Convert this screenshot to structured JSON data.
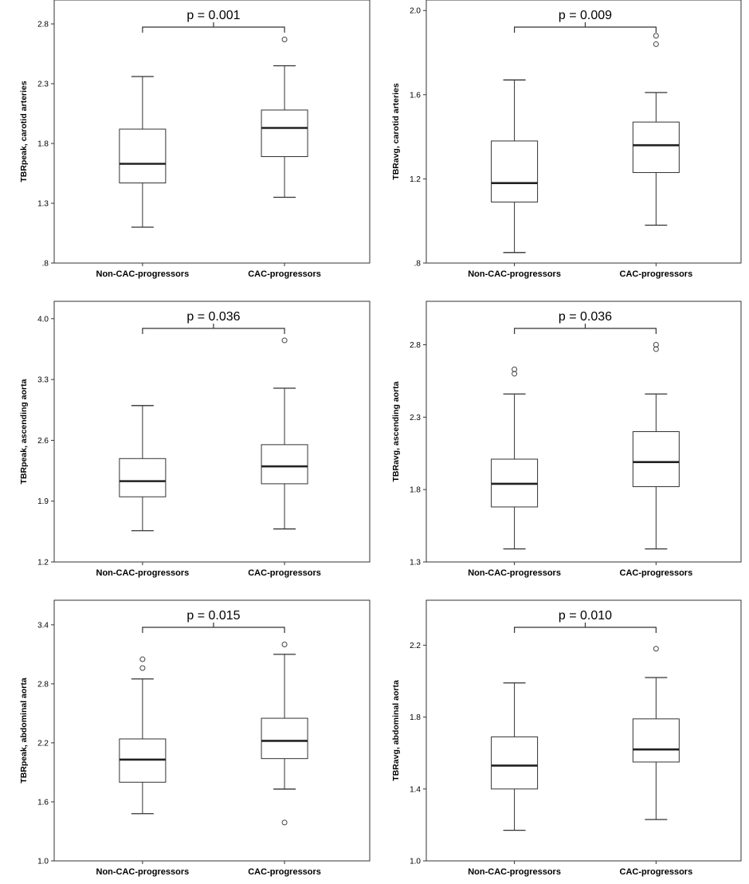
{
  "chart_data": [
    {
      "type": "boxplot",
      "ylabel": "TBRpeak, carotid arteries",
      "ylim": [
        0.8,
        3.0
      ],
      "yticks": [
        0.8,
        1.3,
        1.8,
        2.3,
        2.8
      ],
      "yticklabels": [
        ".8",
        "1.3",
        "1.8",
        "2.3",
        "2.8"
      ],
      "categories": [
        "Non-CAC-progressors",
        "CAC-progressors"
      ],
      "boxes": [
        {
          "whisker_low": 1.1,
          "q1": 1.47,
          "median": 1.63,
          "q3": 1.92,
          "whisker_high": 2.36,
          "outliers": []
        },
        {
          "whisker_low": 1.35,
          "q1": 1.69,
          "median": 1.93,
          "q3": 2.08,
          "whisker_high": 2.45,
          "outliers": [
            2.67
          ]
        }
      ],
      "annotation": "p = 0.001"
    },
    {
      "type": "boxplot",
      "ylabel": "TBRavg, carotid arteries",
      "ylim": [
        0.8,
        2.05
      ],
      "yticks": [
        0.8,
        1.2,
        1.6,
        2.0
      ],
      "yticklabels": [
        ".8",
        "1.2",
        "1.6",
        "2.0"
      ],
      "categories": [
        "Non-CAC-progressors",
        "CAC-progressors"
      ],
      "boxes": [
        {
          "whisker_low": 0.85,
          "q1": 1.09,
          "median": 1.18,
          "q3": 1.38,
          "whisker_high": 1.67,
          "outliers": []
        },
        {
          "whisker_low": 0.98,
          "q1": 1.23,
          "median": 1.36,
          "q3": 1.47,
          "whisker_high": 1.61,
          "outliers": [
            1.84,
            1.88
          ]
        }
      ],
      "annotation": "p = 0.009"
    },
    {
      "type": "boxplot",
      "ylabel": "TBRpeak, ascending aorta",
      "ylim": [
        1.2,
        4.2
      ],
      "yticks": [
        1.2,
        1.9,
        2.6,
        3.3,
        4.0
      ],
      "yticklabels": [
        "1.2",
        "1.9",
        "2.6",
        "3.3",
        "4.0"
      ],
      "categories": [
        "Non-CAC-progressors",
        "CAC-progressors"
      ],
      "boxes": [
        {
          "whisker_low": 1.56,
          "q1": 1.95,
          "median": 2.13,
          "q3": 2.39,
          "whisker_high": 3.0,
          "outliers": []
        },
        {
          "whisker_low": 1.58,
          "q1": 2.1,
          "median": 2.3,
          "q3": 2.55,
          "whisker_high": 3.2,
          "outliers": [
            3.75
          ]
        }
      ],
      "annotation": "p = 0.036"
    },
    {
      "type": "boxplot",
      "ylabel": "TBRavg, ascending aorta",
      "ylim": [
        1.3,
        3.1
      ],
      "yticks": [
        1.3,
        1.8,
        2.3,
        2.8
      ],
      "yticklabels": [
        "1.3",
        "1.8",
        "2.3",
        "2.8"
      ],
      "categories": [
        "Non-CAC-progressors",
        "CAC-progressors"
      ],
      "boxes": [
        {
          "whisker_low": 1.39,
          "q1": 1.68,
          "median": 1.84,
          "q3": 2.01,
          "whisker_high": 2.46,
          "outliers": [
            2.6,
            2.63
          ]
        },
        {
          "whisker_low": 1.39,
          "q1": 1.82,
          "median": 1.99,
          "q3": 2.2,
          "whisker_high": 2.46,
          "outliers": [
            2.77,
            2.8
          ]
        }
      ],
      "annotation": "p = 0.036"
    },
    {
      "type": "boxplot",
      "ylabel": "TBRpeak, abdominal aorta",
      "ylim": [
        1.0,
        3.65
      ],
      "yticks": [
        1.0,
        1.6,
        2.2,
        2.8,
        3.4
      ],
      "yticklabels": [
        "1.0",
        "1.6",
        "2.2",
        "2.8",
        "3.4"
      ],
      "categories": [
        "Non-CAC-progressors",
        "CAC-progressors"
      ],
      "boxes": [
        {
          "whisker_low": 1.48,
          "q1": 1.8,
          "median": 2.03,
          "q3": 2.24,
          "whisker_high": 2.85,
          "outliers": [
            2.96,
            3.05
          ]
        },
        {
          "whisker_low": 1.73,
          "q1": 2.04,
          "median": 2.22,
          "q3": 2.45,
          "whisker_high": 3.1,
          "outliers": [
            1.39,
            3.2
          ]
        }
      ],
      "annotation": "p = 0.015"
    },
    {
      "type": "boxplot",
      "ylabel": "TBRavg, abdominal aorta",
      "ylim": [
        1.0,
        2.45
      ],
      "yticks": [
        1.0,
        1.4,
        1.8,
        2.2
      ],
      "yticklabels": [
        "1.0",
        "1.4",
        "1.8",
        "2.2"
      ],
      "categories": [
        "Non-CAC-progressors",
        "CAC-progressors"
      ],
      "boxes": [
        {
          "whisker_low": 1.17,
          "q1": 1.4,
          "median": 1.53,
          "q3": 1.69,
          "whisker_high": 1.99,
          "outliers": []
        },
        {
          "whisker_low": 1.23,
          "q1": 1.55,
          "median": 1.62,
          "q3": 1.79,
          "whisker_high": 2.02,
          "outliers": [
            2.18
          ]
        }
      ],
      "annotation": "p = 0.010"
    }
  ]
}
